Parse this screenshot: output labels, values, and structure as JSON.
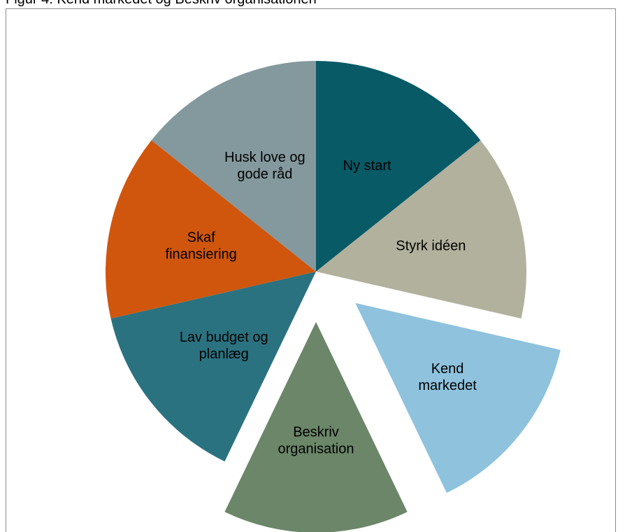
{
  "figure": {
    "caption": "Figur 4: Kend markedet og Beskriv organisationen"
  },
  "chart_data": {
    "type": "pie",
    "exploded": [
      "Kend markedet",
      "Beskriv organisation"
    ],
    "values": [
      1,
      1,
      1,
      1,
      1,
      1,
      1
    ],
    "slices": [
      {
        "label_lines": [
          "Ny start"
        ],
        "value": 1,
        "color": "#075a66"
      },
      {
        "label_lines": [
          "Styrk idéen"
        ],
        "value": 1,
        "color": "#b1b19d"
      },
      {
        "label_lines": [
          "Kend",
          "markedet"
        ],
        "value": 1,
        "color": "#8ec2dd"
      },
      {
        "label_lines": [
          "Beskriv",
          "organisation"
        ],
        "value": 1,
        "color": "#6b8668"
      },
      {
        "label_lines": [
          "Lav budget og",
          "planlæg"
        ],
        "value": 1,
        "color": "#2b7280"
      },
      {
        "label_lines": [
          "Skaf",
          "finansiering"
        ],
        "value": 1,
        "color": "#d0560d"
      },
      {
        "label_lines": [
          "Husk love og",
          "gode råd"
        ],
        "value": 1,
        "color": "#84999e"
      }
    ]
  }
}
